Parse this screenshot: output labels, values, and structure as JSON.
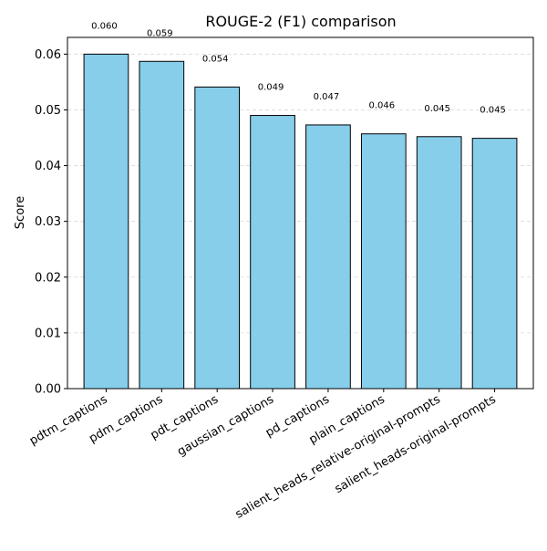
{
  "chart_data": {
    "type": "bar",
    "title": "ROUGE-2 (F1) comparison",
    "xlabel": "",
    "ylabel": "Score",
    "ylim": [
      0,
      0.063
    ],
    "yticks": [
      0.0,
      0.01,
      0.02,
      0.03,
      0.04,
      0.05,
      0.06
    ],
    "ytick_labels": [
      "0.00",
      "0.01",
      "0.02",
      "0.03",
      "0.04",
      "0.05",
      "0.06"
    ],
    "grid": "y-dashed",
    "categories": [
      "pdtm_captions",
      "pdm_captions",
      "pdt_captions",
      "gaussian_captions",
      "pd_captions",
      "plain_captions",
      "salient_heads_relative-original-prompts",
      "salient_heads-original-prompts"
    ],
    "values": [
      0.06,
      0.0587,
      0.0541,
      0.049,
      0.0473,
      0.0457,
      0.0452,
      0.0449
    ],
    "value_labels": [
      "0.060",
      "0.059",
      "0.054",
      "0.049",
      "0.047",
      "0.046",
      "0.045",
      "0.045"
    ],
    "colors": {
      "bar_fill": "#87ceeb",
      "bar_edge": "#000000",
      "grid": "#d9d9d9",
      "axis": "#000000"
    }
  }
}
